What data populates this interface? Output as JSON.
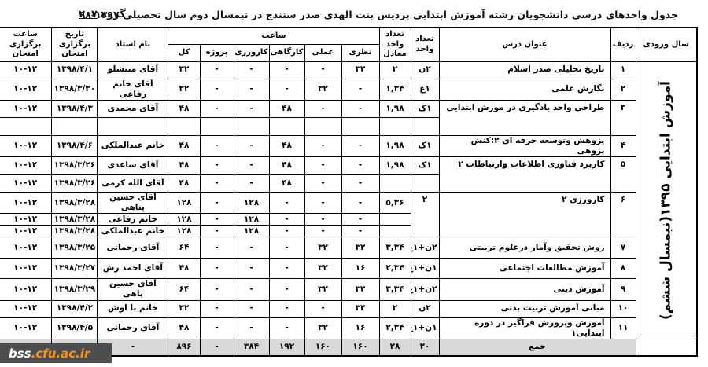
{
  "page": {
    "title": "جدول واحدهای درسی دانشجویان رشته آموزش ابتدایی پردیس بنت الهدی صدر سنندج در نیمسال دوم سال تحصیلی ۱۳۹۷-۹۸",
    "group_prefix": "گروه ",
    "group_number": "۲۰۷"
  },
  "footer": {
    "site_bold": "bss",
    "site_rest": ".cfu.ac.ir"
  },
  "table": {
    "entry_year_label": "آموزش ابتدایی ۱۳۹۵(نیمسال ششم)",
    "headers": {
      "entry_year": "سال ورودی",
      "rank": "ردیف",
      "course_title": "عنوان درس",
      "units": "تعداد واحد",
      "equivalent_units": "تعداد واحد معادل",
      "hours_group": "ساعت",
      "hours": [
        "نظری",
        "عملی",
        "کارگاهی",
        "کارورزی",
        "پروژه",
        "کل"
      ],
      "instructor": "نام استاد",
      "exam_date": "تاریخ برگزاری امتحان",
      "exam_time": "ساعت برگزاری امتحان"
    },
    "rows": [
      [
        {
          "t": "",
          "cls": "entry-cell",
          "rs": 15,
          "name": "entry-year-cell"
        },
        "۱",
        {
          "t": "تاریخ تحلیلی صدر اسلام",
          "cls": "crs"
        },
        "۲ن",
        "۲",
        "۳۲",
        "-",
        "-",
        "-",
        "-",
        "۳۲",
        "آقای منتشلو",
        "۱۳۹۸/۴/۱",
        "۱۰-۱۲"
      ],
      [
        "۲",
        {
          "t": "نگارش علمی",
          "cls": "crs"
        },
        "۱ع",
        "۱,۳۴",
        "-",
        "۳۲",
        "-",
        "-",
        "-",
        "۳۲",
        "آقای خانم رفاعی",
        "۱۳۹۸/۳/۳۰",
        "۱۰-۱۲"
      ],
      [
        {
          "t": "۳",
          "rs": 2,
          "cls": "vtop"
        },
        {
          "t": "طراحی واحد یادگیری در موزش ابتدایی",
          "rs": 2,
          "cls": "crs vtop"
        },
        "۱ک",
        "۱,۹۸",
        "-",
        "-",
        "۴۸",
        "-",
        "-",
        "۴۸",
        "آقای محمدی",
        "۱۳۹۸/۴/۳",
        "۱۰-۱۲"
      ],
      [
        "",
        "",
        "",
        "",
        "",
        "",
        "",
        "",
        "",
        "",
        ""
      ],
      [
        "۴",
        {
          "t": "پژوهش وتوسعه حرفه ای ۲:کنش پژوهی",
          "cls": "crs"
        },
        "۱ک",
        "۱,۹۸",
        "-",
        "-",
        "۴۸",
        "-",
        "-",
        "۴۸",
        "خانم عبدالملکی",
        "۱۳۹۸/۴/۶",
        "۱۰-۱۲"
      ],
      [
        {
          "t": "۵",
          "rs": 2,
          "cls": "vtop"
        },
        {
          "t": "کاربرد فناوری اطلاعات وارتباطات ۲",
          "rs": 2,
          "cls": "crs vtop"
        },
        "۱ک",
        "۱,۹۸",
        "-",
        "-",
        "۴۸",
        "-",
        "-",
        "۴۸",
        "آقای ساعدی",
        "۱۳۹۸/۳/۲۶",
        "۱۰-۱۲"
      ],
      [
        "",
        "",
        "-",
        "-",
        "۴۸",
        "-",
        "-",
        "۴۸",
        "آقای الله کرمی",
        "۱۳۹۸/۳/۲۶",
        "۱۰-۱۲"
      ],
      [
        {
          "t": "۶",
          "rs": 3,
          "cls": "vtop"
        },
        {
          "t": "کارورزی ۲",
          "rs": 3,
          "cls": "crs vtop"
        },
        {
          "t": "۲",
          "rs": 3,
          "cls": "vtop"
        },
        "۵,۳۶",
        "-",
        "-",
        "-",
        "۱۲۸",
        "-",
        "۱۲۸",
        "آقای حسین پناهی",
        "۱۳۹۸/۳/۲۸",
        "۱۰-۱۲"
      ],
      [
        "",
        "-",
        "-",
        "-",
        "۱۲۸",
        "-",
        "۱۲۸",
        "خانم رفاعی",
        "۱۳۹۸/۳/۲۸",
        "۱۰-۱۲"
      ],
      [
        "",
        "-",
        "-",
        "-",
        "۱۲۸",
        "-",
        "۱۲۸",
        "خانم عبدالملکی",
        "۱۳۹۸/۳/۲۸",
        "۱۰-۱۲"
      ],
      [
        "۷",
        {
          "t": "روش تحقیق وآمار درعلوم تربیتی",
          "cls": "crs"
        },
        "۲ن+۱ع",
        "۳,۳۴",
        "۳۲",
        "۳۲",
        "-",
        "-",
        "-",
        "۶۴",
        "آقای رحمانی",
        "۱۳۹۸/۳/۲۵",
        "۱۰-۱۲"
      ],
      [
        "۸",
        {
          "t": "آموزش مطالعات اجتماعی",
          "cls": "crs"
        },
        "۱ن+۱ع",
        "۲,۳۴",
        "۱۶",
        "۳۲",
        "-",
        "-",
        "-",
        "۴۸",
        "آقای احمد رش",
        "۱۳۹۸/۳/۲۷",
        "۱۰-۱۲"
      ],
      [
        "۹",
        {
          "t": "آموزش دینی",
          "cls": "crs"
        },
        "۲ن+۱ع",
        "۳,۳۴",
        "۳۲",
        "۳۲",
        "-",
        "-",
        "-",
        "۶۴",
        "آقای حسین پاهی",
        "۱۳۹۸/۳/۲۹",
        "۱۰-۱۲"
      ],
      [
        "۱۰",
        {
          "t": "مبانی آموزش تربیت بدنی",
          "cls": "crs"
        },
        "۲ن",
        "۲",
        "۳۲",
        "-",
        "-",
        "-",
        "-",
        "۳۲",
        "خانم با اوش",
        "۱۳۹۸/۴/۲",
        "۱۰-۱۲"
      ],
      [
        "۱۱",
        {
          "t": "آموزش وپرورش فراگیر در دوره ابتدایی۱",
          "cls": "crs"
        },
        "۱ن+۱ع",
        "۲,۳۴",
        "۱۶",
        "۳۲",
        "-",
        "-",
        "-",
        "۴۸",
        "آقای رحمانی",
        "۱۳۹۸/۴/۵",
        "۱۰-۱۲"
      ],
      [
        {
          "t": "",
          "cls": "blank",
          "name": "totals-entry-year-cell"
        },
        {
          "t": "جمع",
          "cs": 2,
          "name": "totals-label-cell"
        },
        "۲۰",
        "۲۸",
        "۱۶۰",
        "۱۶۰",
        "۱۹۲",
        "۳۸۴",
        "-",
        "۸۹۶",
        "-",
        "-",
        "-"
      ]
    ]
  }
}
